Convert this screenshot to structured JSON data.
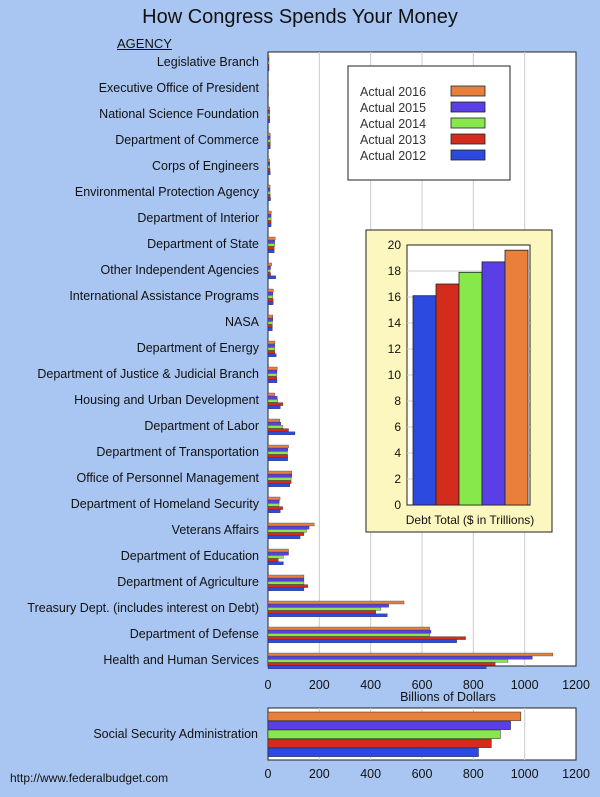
{
  "title": "How Congress Spends Your Money",
  "agency_header": "AGENCY",
  "footer_url": "http://www.federalbudget.com",
  "colors": {
    "2016": "#e8803c",
    "2015": "#5b3fe6",
    "2014": "#86e84a",
    "2013": "#d42c1c",
    "2012": "#2c49e0"
  },
  "chart_data": [
    {
      "type": "bar",
      "orientation": "horizontal",
      "xlabel": "Billions of Dollars",
      "xlim": [
        0,
        1200
      ],
      "xticks": [
        0,
        200,
        400,
        600,
        800,
        1000,
        1200
      ],
      "grid": true,
      "legend_position": "top-right",
      "series_order": [
        "Actual 2016",
        "Actual 2015",
        "Actual 2014",
        "Actual 2013",
        "Actual 2012"
      ],
      "categories": [
        "Legislative Branch",
        "Executive Office of President",
        "National Science Foundation",
        "Department of Commerce",
        "Corps of Engineers",
        "Environmental Protection Agency",
        "Department of Interior",
        "Department of State",
        "Other Independent Agencies",
        "International Assistance Programs",
        "NASA",
        "Department of Energy",
        "Department of Justice & Judicial Branch",
        "Housing and Urban Development",
        "Department of Labor",
        "Department of Transportation",
        "Office of Personnel Management",
        "Department of Homeland Security",
        "Veterans Affairs",
        "Department of Education",
        "Department of Agriculture",
        "Treasury Dept. (includes interest on Debt)",
        "Department of Defense",
        "Health and Human Services"
      ],
      "series": [
        {
          "name": "Actual 2016",
          "color_key": "2016",
          "values": [
            4,
            1,
            7,
            9,
            6,
            8,
            13,
            28,
            14,
            21,
            19,
            27,
            36,
            26,
            46,
            80,
            93,
            47,
            180,
            80,
            140,
            530,
            630,
            1110
          ]
        },
        {
          "name": "Actual 2015",
          "color_key": "2015",
          "values": [
            4,
            1,
            7,
            9,
            7,
            8,
            12,
            26,
            10,
            19,
            19,
            26,
            35,
            36,
            50,
            77,
            93,
            44,
            160,
            80,
            140,
            470,
            635,
            1030
          ]
        },
        {
          "name": "Actual 2014",
          "color_key": "2014",
          "values": [
            4,
            1,
            7,
            9,
            7,
            8,
            12,
            26,
            8,
            18,
            17,
            26,
            34,
            38,
            58,
            75,
            90,
            43,
            150,
            60,
            140,
            440,
            630,
            935
          ]
        },
        {
          "name": "Actual 2013",
          "color_key": "2013",
          "values": [
            4,
            1,
            7,
            9,
            8,
            9,
            12,
            24,
            10,
            20,
            17,
            26,
            34,
            58,
            80,
            77,
            90,
            57,
            140,
            40,
            155,
            420,
            770,
            885
          ]
        },
        {
          "name": "Actual 2012",
          "color_key": "2012",
          "values": [
            4,
            1,
            7,
            9,
            9,
            10,
            12,
            24,
            30,
            20,
            17,
            32,
            35,
            48,
            105,
            77,
            85,
            48,
            125,
            60,
            140,
            465,
            735,
            850
          ]
        }
      ]
    },
    {
      "type": "bar",
      "title": "Debt Total ($ in Trillions)",
      "ylim": [
        0,
        20
      ],
      "yticks": [
        0,
        2,
        4,
        6,
        8,
        10,
        12,
        14,
        16,
        18,
        20
      ],
      "grid": true,
      "categories": [
        "2012",
        "2013",
        "2014",
        "2015",
        "2016"
      ],
      "values": [
        16.1,
        17.0,
        17.9,
        18.7,
        19.6
      ]
    },
    {
      "type": "bar",
      "orientation": "horizontal",
      "xlim": [
        0,
        1200
      ],
      "xticks": [
        0,
        200,
        400,
        600,
        800,
        1000,
        1200
      ],
      "grid": true,
      "categories": [
        "Social Security Administration"
      ],
      "series": [
        {
          "name": "Actual 2016",
          "color_key": "2016",
          "values": [
            985
          ]
        },
        {
          "name": "Actual 2015",
          "color_key": "2015",
          "values": [
            945
          ]
        },
        {
          "name": "Actual 2014",
          "color_key": "2014",
          "values": [
            905
          ]
        },
        {
          "name": "Actual 2013",
          "color_key": "2013",
          "values": [
            870
          ]
        },
        {
          "name": "Actual 2012",
          "color_key": "2012",
          "values": [
            820
          ]
        }
      ]
    }
  ]
}
